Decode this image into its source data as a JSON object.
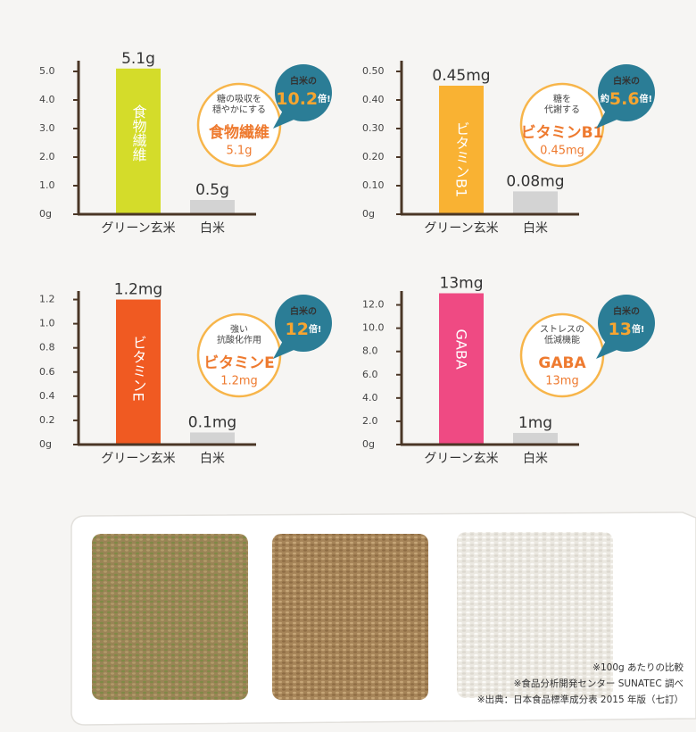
{
  "chart_data": [
    {
      "type": "bar",
      "categories": [
        "グリーン玄米",
        "白米"
      ],
      "values": [
        5.1,
        0.5
      ],
      "value_labels": [
        "5.1g",
        "0.5g"
      ],
      "bar_label": "食物繊維",
      "colors": [
        "#d4dc2a",
        "#d3d3d3"
      ],
      "ylim": [
        0,
        5.5
      ],
      "yticks": [
        {
          "value": 0,
          "label": "0g"
        },
        {
          "value": 1,
          "label": "1.0"
        },
        {
          "value": 2,
          "label": "2.0"
        },
        {
          "value": 3,
          "label": "3.0"
        },
        {
          "value": 4,
          "label": "4.0"
        },
        {
          "value": 5,
          "label": "5.0"
        }
      ],
      "callout": {
        "lines": [
          "糖の吸収を",
          "穏やかにする"
        ],
        "name": "食物繊維",
        "amount": "5.1g"
      },
      "badge": {
        "top": "白米の",
        "number": "10.2",
        "suffix": "倍!"
      }
    },
    {
      "type": "bar",
      "categories": [
        "グリーン玄米",
        "白米"
      ],
      "values": [
        0.45,
        0.08
      ],
      "value_labels": [
        "0.45mg",
        "0.08mg"
      ],
      "bar_label": "ビタミンB1",
      "colors": [
        "#f9b233",
        "#d3d3d3"
      ],
      "ylim": [
        0,
        0.55
      ],
      "yticks": [
        {
          "value": 0,
          "label": "0g"
        },
        {
          "value": 0.1,
          "label": "0.10"
        },
        {
          "value": 0.2,
          "label": "0.20"
        },
        {
          "value": 0.3,
          "label": "0.30"
        },
        {
          "value": 0.4,
          "label": "0.40"
        },
        {
          "value": 0.5,
          "label": "0.50"
        }
      ],
      "callout": {
        "lines": [
          "糖を",
          "代謝する"
        ],
        "name": "ビタミンB1",
        "amount": "0.45mg"
      },
      "badge": {
        "top": "白米の",
        "prefix": "約",
        "number": "5.6",
        "suffix": "倍!"
      }
    },
    {
      "type": "bar",
      "categories": [
        "グリーン玄米",
        "白米"
      ],
      "values": [
        1.2,
        0.1
      ],
      "value_labels": [
        "1.2mg",
        "0.1mg"
      ],
      "bar_label": "ビタミンE",
      "colors": [
        "#f05a22",
        "#d3d3d3"
      ],
      "ylim": [
        0,
        1.3
      ],
      "yticks": [
        {
          "value": 0,
          "label": "0g"
        },
        0.2,
        0.4,
        0.6,
        0.8,
        {
          "value": 1,
          "label": "1.0"
        },
        1.2
      ],
      "callout": {
        "lines": [
          "強い",
          "抗酸化作用"
        ],
        "name": "ビタミンE",
        "amount": "1.2mg"
      },
      "badge": {
        "top": "白米の",
        "number": "12",
        "suffix": "倍!"
      }
    },
    {
      "type": "bar",
      "categories": [
        "グリーン玄米",
        "白米"
      ],
      "values": [
        13,
        1
      ],
      "value_labels": [
        "13mg",
        "1mg"
      ],
      "bar_label": "GABA",
      "colors": [
        "#ef4a83",
        "#d3d3d3"
      ],
      "ylim": [
        0,
        13.5
      ],
      "yticks": [
        {
          "value": 0,
          "label": "0g"
        },
        {
          "value": 2,
          "label": "2.0"
        },
        {
          "value": 4,
          "label": "4.0"
        },
        {
          "value": 6,
          "label": "6.0"
        },
        {
          "value": 8,
          "label": "8.0"
        },
        {
          "value": 10,
          "label": "10.0"
        },
        {
          "value": 12,
          "label": "12.0"
        }
      ],
      "callout": {
        "lines": [
          "ストレスの",
          "低減機能"
        ],
        "name": "GABA",
        "amount": "13mg"
      },
      "badge": {
        "top": "白米の",
        "number": "13",
        "suffix": "倍!"
      }
    }
  ],
  "notes": [
    "※100g あたりの比較",
    "※食品分析開発センター SUNATEC 調べ",
    "※出典：日本食品標準成分表 2015 年版（七訂）"
  ]
}
